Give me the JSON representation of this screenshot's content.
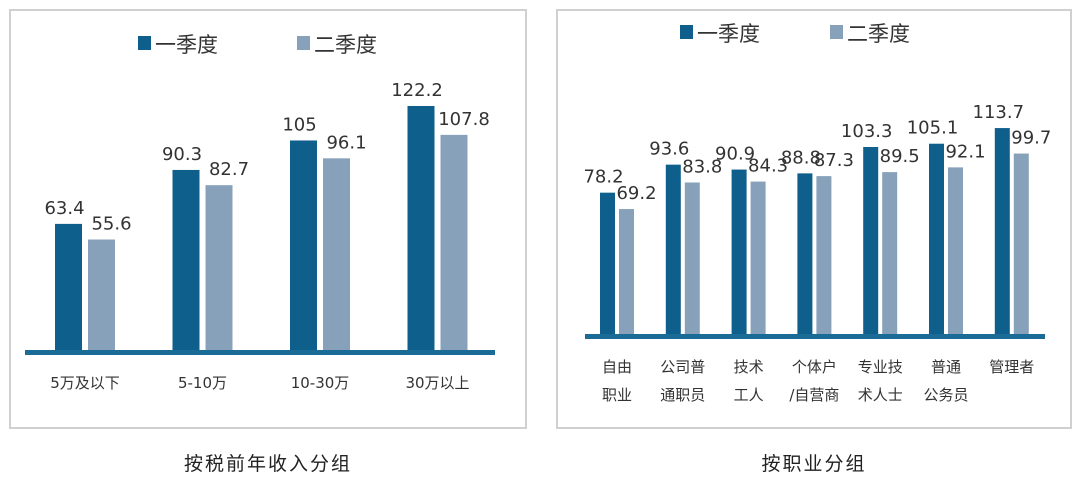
{
  "colors": {
    "q1": "#0e5f8c",
    "q2": "#87a1bb",
    "axis": "#1b6b97"
  },
  "chart_data": [
    {
      "type": "bar",
      "title": "按税前年收入分组",
      "legend_position": "top",
      "categories": [
        [
          "5万及以下"
        ],
        [
          "5-10万"
        ],
        [
          "10-30万"
        ],
        [
          "30万以上"
        ]
      ],
      "series": [
        {
          "name": "一季度",
          "values": [
            63.4,
            90.3,
            105,
            122.2
          ]
        },
        {
          "name": "二季度",
          "values": [
            55.6,
            82.7,
            96.1,
            107.8
          ]
        }
      ]
    },
    {
      "type": "bar",
      "title": "按职业分组",
      "legend_position": "top",
      "categories": [
        [
          "自由",
          "职业"
        ],
        [
          "公司普",
          "通职员"
        ],
        [
          "技术",
          "工人"
        ],
        [
          "个体户",
          "/自营商"
        ],
        [
          "专业技",
          "术人士"
        ],
        [
          "普通",
          "公务员"
        ],
        [
          "管理者"
        ]
      ],
      "series": [
        {
          "name": "一季度",
          "values": [
            78.2,
            93.6,
            90.9,
            88.8,
            103.3,
            105.1,
            113.7
          ]
        },
        {
          "name": "二季度",
          "values": [
            69.2,
            83.8,
            84.3,
            87.3,
            89.5,
            92.1,
            99.7
          ]
        }
      ]
    }
  ]
}
